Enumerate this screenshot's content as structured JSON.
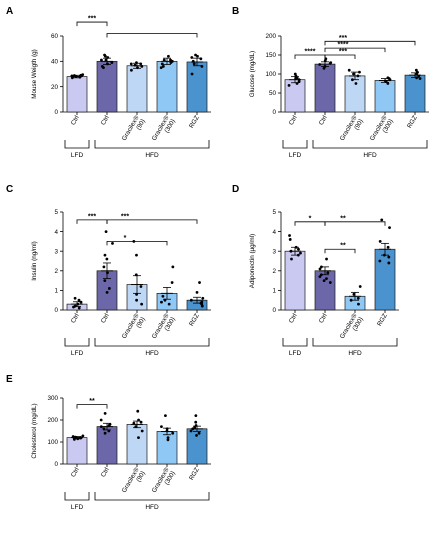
{
  "figure": {
    "panels": [
      {
        "letter": "A"
      },
      {
        "letter": "B"
      },
      {
        "letter": "C"
      },
      {
        "letter": "D"
      },
      {
        "letter": "E"
      }
    ]
  },
  "colors": {
    "bar_stroke": "#1a1a1a",
    "point": "#000000"
  },
  "chart_data": [
    {
      "panel": "A",
      "type": "bar",
      "ylabel": "Mouse Weigth (g)",
      "ylim": [
        0,
        60
      ],
      "yticks": [
        0,
        20,
        40,
        60
      ],
      "categories": [
        "Ctrl",
        "Ctrl",
        "Gracilex® (90)",
        "Gracilex® (300)",
        "RGZ"
      ],
      "values": [
        28,
        40,
        36.5,
        40,
        39.5
      ],
      "errors": [
        1.0,
        2.5,
        2.0,
        2.5,
        3.0
      ],
      "colors": [
        "#c9c9f2",
        "#6b67a8",
        "#bed7f5",
        "#8fc7f5",
        "#4a93cf"
      ],
      "points": [
        [
          27.5,
          28.5,
          28,
          29,
          27.8,
          28.3,
          27,
          29.5,
          28.8,
          28.1
        ],
        [
          43,
          44,
          45,
          38,
          36,
          41,
          39,
          35,
          41
        ],
        [
          39,
          37,
          36,
          33,
          38,
          38,
          35
        ],
        [
          41,
          40,
          44,
          38,
          36,
          39,
          41,
          35
        ],
        [
          42,
          44,
          36,
          38,
          40,
          30,
          45,
          43
        ]
      ],
      "groups": [
        {
          "label": "LFD",
          "from": 0,
          "to": 0
        },
        {
          "label": "HFD",
          "from": 1,
          "to": 4
        }
      ],
      "significance": [
        {
          "label": "***",
          "from": 0,
          "to": 1,
          "level": 71
        },
        {
          "label": "",
          "from": 1,
          "to": 4,
          "level": 62
        }
      ]
    },
    {
      "panel": "B",
      "type": "bar",
      "ylabel": "Glucose (mg/dL)",
      "ylim": [
        0,
        200
      ],
      "yticks": [
        0,
        50,
        100,
        150,
        200
      ],
      "categories": [
        "Ctrl",
        "Ctrl",
        "Gracilex® (90)",
        "Gracilex® (300)",
        "RGZ"
      ],
      "values": [
        85,
        126,
        95,
        83,
        97
      ],
      "errors": [
        8,
        6,
        10,
        5,
        6
      ],
      "colors": [
        "#c9c9f2",
        "#6b67a8",
        "#bed7f5",
        "#8fc7f5",
        "#4a93cf"
      ],
      "points": [
        [
          100,
          95,
          80,
          70,
          90,
          75,
          85,
          88
        ],
        [
          135,
          140,
          125,
          120,
          130,
          115,
          128
        ],
        [
          110,
          100,
          85,
          75,
          105,
          95
        ],
        [
          80,
          85,
          90,
          75,
          82,
          88
        ],
        [
          110,
          95,
          90,
          100,
          88,
          105
        ]
      ],
      "groups": [
        {
          "label": "LFD",
          "from": 0,
          "to": 0
        },
        {
          "label": "HFD",
          "from": 1,
          "to": 4
        }
      ],
      "significance": [
        {
          "label": "****",
          "from": 0,
          "to": 1,
          "level": 150
        },
        {
          "label": "***",
          "from": 1,
          "to": 2,
          "level": 150
        },
        {
          "label": "****",
          "from": 1,
          "to": 3,
          "level": 168
        },
        {
          "label": "***",
          "from": 1,
          "to": 4,
          "level": 186
        }
      ]
    },
    {
      "panel": "C",
      "type": "bar",
      "ylabel": "Insulin (ng/ml)",
      "ylim": [
        0,
        5
      ],
      "yticks": [
        0,
        1,
        2,
        3,
        4,
        5
      ],
      "categories": [
        "Ctrl",
        "Ctrl",
        "Gracilex® (90)",
        "Gracilex® (300)",
        "RGZ"
      ],
      "values": [
        0.3,
        2.0,
        1.3,
        0.85,
        0.5
      ],
      "errors": [
        0.12,
        0.4,
        0.45,
        0.3,
        0.15
      ],
      "colors": [
        "#c9c9f2",
        "#6b67a8",
        "#bed7f5",
        "#8fc7f5",
        "#4a93cf"
      ],
      "points": [
        [
          0.6,
          0.5,
          0.15,
          0.2,
          0.1,
          0.4,
          0.3
        ],
        [
          4.0,
          3.4,
          2.6,
          2.2,
          1.9,
          1.5,
          1.1,
          0.9,
          2.8
        ],
        [
          3.5,
          2.8,
          1.8,
          0.8,
          0.5,
          0.3,
          1.2
        ],
        [
          2.2,
          1.4,
          0.7,
          0.5,
          0.4,
          0.3
        ],
        [
          1.4,
          0.9,
          0.5,
          0.3,
          0.4,
          0.2,
          0.6,
          0.35
        ]
      ],
      "groups": [
        {
          "label": "LFD",
          "from": 0,
          "to": 0
        },
        {
          "label": "HFD",
          "from": 1,
          "to": 4
        }
      ],
      "significance": [
        {
          "label": "***",
          "from": 0,
          "to": 1,
          "level": 4.6
        },
        {
          "label": "*",
          "from": 1,
          "to": 3,
          "level": 3.5
        },
        {
          "label": "***",
          "from": 1,
          "to": 4,
          "level": 4.6
        }
      ]
    },
    {
      "panel": "D",
      "type": "bar",
      "ylabel": "Adiponectin (µg/ml)",
      "ylim": [
        0,
        5
      ],
      "yticks": [
        0,
        1,
        2,
        3,
        4,
        5
      ],
      "categories": [
        "Ctrl",
        "Ctrl",
        "Gracilex® (300)",
        "RGZ"
      ],
      "values": [
        3.0,
        2.0,
        0.7,
        3.1
      ],
      "errors": [
        0.2,
        0.2,
        0.2,
        0.3
      ],
      "colors": [
        "#c9c9f2",
        "#6b67a8",
        "#8fc7f5",
        "#4a93cf"
      ],
      "points": [
        [
          3.8,
          3.6,
          3.1,
          2.9,
          2.8,
          2.6,
          3.0,
          3.2
        ],
        [
          2.6,
          2.1,
          1.8,
          1.5,
          1.6,
          2.2,
          1.7,
          1.4,
          1.9
        ],
        [
          1.2,
          0.8,
          0.5,
          0.3,
          0.6
        ],
        [
          4.6,
          4.2,
          3.5,
          2.8,
          2.4,
          2.5,
          3.2,
          2.7
        ]
      ],
      "groups": [
        {
          "label": "LFD",
          "from": 0,
          "to": 0
        },
        {
          "label": "HFD",
          "from": 1,
          "to": 3
        }
      ],
      "significance": [
        {
          "label": "*",
          "from": 0,
          "to": 1,
          "level": 4.5
        },
        {
          "label": "**",
          "from": 1,
          "to": 2,
          "level": 3.1
        },
        {
          "label": "**",
          "from": 1,
          "to": 3,
          "level": 4.5
        }
      ]
    },
    {
      "panel": "E",
      "type": "bar",
      "ylabel": "Cholesterol (mg/dL)",
      "ylim": [
        0,
        300
      ],
      "yticks": [
        0,
        100,
        200,
        300
      ],
      "categories": [
        "Ctrl",
        "Ctrl",
        "Gracilex® (90)",
        "Gracilex® (300)",
        "RGZ"
      ],
      "values": [
        120,
        170,
        180,
        148,
        160
      ],
      "errors": [
        5,
        15,
        15,
        15,
        12
      ],
      "colors": [
        "#c9c9f2",
        "#6b67a8",
        "#bed7f5",
        "#8fc7f5",
        "#4a93cf"
      ],
      "points": [
        [
          125,
          118,
          122,
          115,
          128,
          120,
          112,
          119
        ],
        [
          230,
          200,
          180,
          160,
          150,
          140,
          170,
          175
        ],
        [
          240,
          200,
          190,
          170,
          150,
          120,
          185
        ],
        [
          220,
          170,
          150,
          140,
          120,
          110,
          160
        ],
        [
          220,
          190,
          160,
          150,
          140,
          130,
          175,
          165
        ]
      ],
      "groups": [
        {
          "label": "LFD",
          "from": 0,
          "to": 0
        },
        {
          "label": "HFD",
          "from": 1,
          "to": 4
        }
      ],
      "significance": [
        {
          "label": "**",
          "from": 0,
          "to": 1,
          "level": 270
        }
      ]
    }
  ]
}
